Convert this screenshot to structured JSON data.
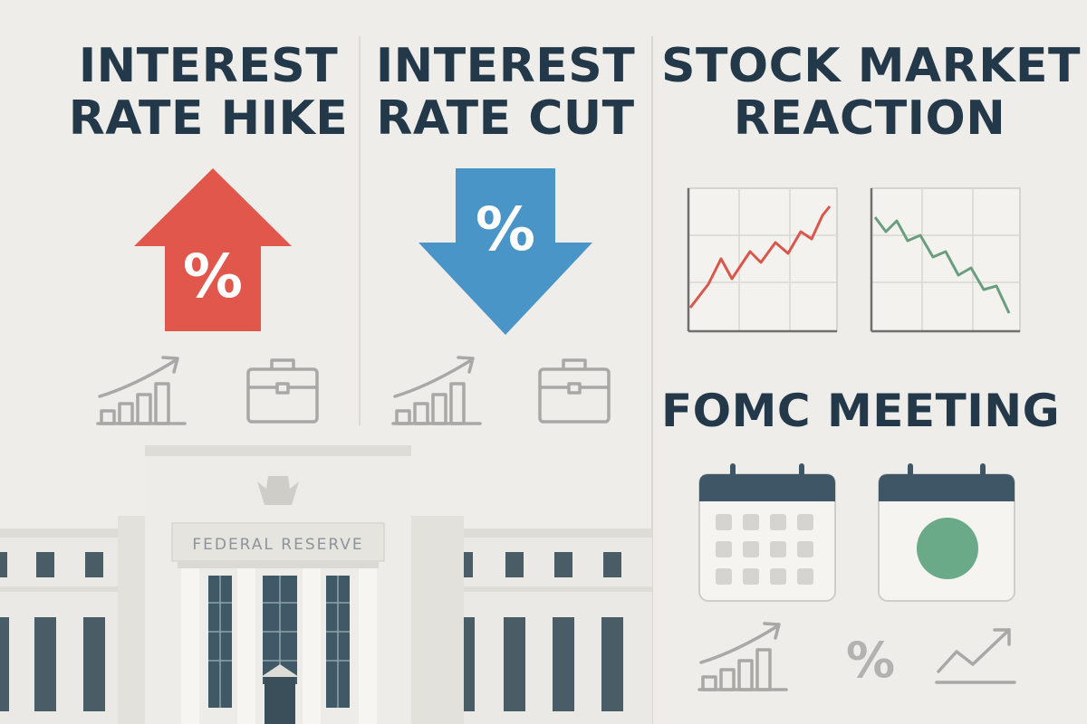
{
  "panels": {
    "hike": {
      "title_line1": "INTEREST",
      "title_line2": "RATE HIKE",
      "arrow_color": "#e2574c",
      "arrow_symbol": "%",
      "icons": [
        "bar-growth-icon",
        "briefcase-icon"
      ]
    },
    "cut": {
      "title_line1": "INTEREST",
      "title_line2": "RATE CUT",
      "arrow_color": "#4a95c8",
      "arrow_symbol": "%",
      "icons": [
        "bar-growth-icon",
        "briefcase-icon"
      ]
    },
    "market": {
      "title_line1": "STOCK MARKET",
      "title_line2": "REACTION",
      "up_line_color": "#d9574a",
      "down_line_color": "#6a9e7f"
    },
    "fomc": {
      "title": "FOMC MEETING",
      "calendar_header_color": "#3e5666",
      "dot_color": "#6aaa88",
      "bottom_icons": [
        "bar-growth-icon",
        "percent-icon",
        "trend-up-icon"
      ],
      "percent_symbol": "%"
    }
  },
  "building": {
    "label": "FEDERAL RESERVE",
    "window_color": "#3f5a66"
  }
}
